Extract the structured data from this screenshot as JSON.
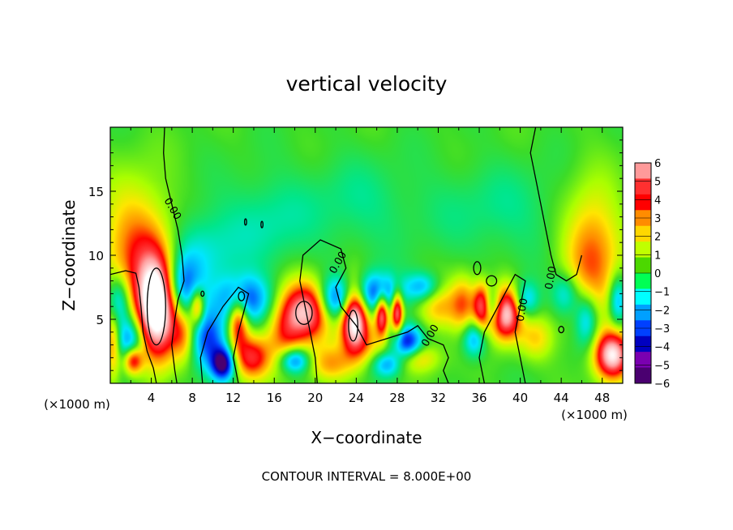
{
  "chart_data": {
    "type": "heatmap",
    "title": "vertical velocity",
    "xlabel": "X−coordinate",
    "ylabel": "Z−coordinate",
    "x_unit_left": "(×1000 m)",
    "x_unit_right": "(×1000 m)",
    "footer": "CONTOUR INTERVAL = 8.000E+00",
    "xlim": [
      0,
      50
    ],
    "ylim": [
      0,
      20
    ],
    "x_ticks": [
      4,
      8,
      12,
      16,
      20,
      24,
      28,
      32,
      36,
      40,
      44,
      48
    ],
    "x_tick_labels": [
      "4",
      "8",
      "12",
      "16",
      "20",
      "24",
      "28",
      "32",
      "36",
      "40",
      "44",
      "48"
    ],
    "y_ticks": [
      5,
      10,
      15
    ],
    "y_tick_labels": [
      "5",
      "10",
      "15"
    ],
    "contour_labels": [
      {
        "text": "0.00",
        "x": 5.8,
        "y": 13.5,
        "angle": 60
      },
      {
        "text": "0.00",
        "x": 22.5,
        "y": 9.3,
        "angle": -60
      },
      {
        "text": "0.00",
        "x": 31.5,
        "y": 3.6,
        "angle": -60
      },
      {
        "text": "0.00",
        "x": 40.5,
        "y": 5.7,
        "angle": -80
      },
      {
        "text": "0.00",
        "x": 43.3,
        "y": 8.2,
        "angle": -80
      }
    ],
    "colorbar": {
      "labels": [
        "6",
        "5",
        "4",
        "3",
        "2",
        "1",
        "0",
        "−1",
        "−2",
        "−3",
        "−4",
        "−5",
        "−6"
      ],
      "colors": [
        "#ff9a9a",
        "#ff3030",
        "#ff0000",
        "#ff8c00",
        "#ffd700",
        "#c0ff00",
        "#4cd800",
        "#00ff55",
        "#00ffff",
        "#00a0ff",
        "#0040ff",
        "#0000c0",
        "#7a00b0",
        "#4a0070"
      ]
    },
    "features": [
      {
        "x": 4.5,
        "y": 6.0,
        "sx": 1.4,
        "sy": 2.8,
        "value": 9
      },
      {
        "x": 2.5,
        "y": 10.5,
        "sx": 2.4,
        "sy": 3.6,
        "value": 3.3
      },
      {
        "x": 47.0,
        "y": 10.0,
        "sx": 2.0,
        "sy": 3.6,
        "value": 3.6
      },
      {
        "x": 49.0,
        "y": 2.2,
        "sx": 1.2,
        "sy": 1.3,
        "value": 7
      },
      {
        "x": 19.0,
        "y": 5.6,
        "sx": 1.8,
        "sy": 1.6,
        "value": 6.5
      },
      {
        "x": 23.8,
        "y": 5.2,
        "sx": 0.9,
        "sy": 1.8,
        "value": 8
      },
      {
        "x": 26.5,
        "y": 5.5,
        "sx": 0.45,
        "sy": 1.2,
        "value": 6
      },
      {
        "x": 28.0,
        "y": 5.6,
        "sx": 0.4,
        "sy": 1.2,
        "value": 6
      },
      {
        "x": 38.5,
        "y": 5.5,
        "sx": 1.1,
        "sy": 1.4,
        "value": 7.5
      },
      {
        "x": 36.3,
        "y": 6.0,
        "sx": 0.6,
        "sy": 1.2,
        "value": 6
      },
      {
        "x": 12.5,
        "y": 5.0,
        "sx": 0.7,
        "sy": 1.5,
        "value": 5
      },
      {
        "x": 13.8,
        "y": 2.0,
        "sx": 1.3,
        "sy": 1.2,
        "value": 4.5
      },
      {
        "x": 2.2,
        "y": 1.8,
        "sx": 0.7,
        "sy": 0.8,
        "value": 6
      },
      {
        "x": 32.0,
        "y": 6.0,
        "sx": 1.4,
        "sy": 1.3,
        "value": 2.5
      },
      {
        "x": 34.5,
        "y": 6.2,
        "sx": 0.9,
        "sy": 1.5,
        "value": 3
      },
      {
        "x": 30.0,
        "y": 2.0,
        "sx": 1.5,
        "sy": 0.8,
        "value": 2.4
      },
      {
        "x": 21.5,
        "y": 1.5,
        "sx": 1.5,
        "sy": 1.0,
        "value": 2.5
      },
      {
        "x": 25.0,
        "y": 3.0,
        "sx": 1.4,
        "sy": 1.2,
        "value": 2
      },
      {
        "x": 41.5,
        "y": 3.5,
        "sx": 1.2,
        "sy": 1.2,
        "value": 2
      },
      {
        "x": 8.5,
        "y": 6.0,
        "sx": 0.5,
        "sy": 1.0,
        "value": 4
      },
      {
        "x": 17.0,
        "y": 3.5,
        "sx": 1.2,
        "sy": 1.5,
        "value": 2.5
      },
      {
        "x": 0.3,
        "y": 3.0,
        "sx": 0.5,
        "sy": 1.8,
        "value": 3
      },
      {
        "x": 7.2,
        "y": 3.8,
        "sx": 0.8,
        "sy": 1.4,
        "value": 2.5
      },
      {
        "x": 11.0,
        "y": 1.5,
        "sx": 0.8,
        "sy": 0.9,
        "value": -6
      },
      {
        "x": 13.0,
        "y": 6.5,
        "sx": 1.8,
        "sy": 1.3,
        "value": -4.5
      },
      {
        "x": 9.5,
        "y": 3.5,
        "sx": 1.2,
        "sy": 1.6,
        "value": -4
      },
      {
        "x": 2.0,
        "y": 3.0,
        "sx": 1.0,
        "sy": 1.6,
        "value": -4.5
      },
      {
        "x": 0.8,
        "y": 6.5,
        "sx": 0.8,
        "sy": 1.4,
        "value": -3
      },
      {
        "x": 7.0,
        "y": 7.5,
        "sx": 1.2,
        "sy": 1.6,
        "value": -3.5
      },
      {
        "x": 8.5,
        "y": 10.0,
        "sx": 2.5,
        "sy": 2.2,
        "value": -1.8
      },
      {
        "x": 15.0,
        "y": 12.5,
        "sx": 3.0,
        "sy": 2.5,
        "value": -1.2
      },
      {
        "x": 24.0,
        "y": 14.0,
        "sx": 4.0,
        "sy": 2.5,
        "value": -0.9
      },
      {
        "x": 38.0,
        "y": 13.5,
        "sx": 5.0,
        "sy": 2.5,
        "value": -0.9
      },
      {
        "x": 22.0,
        "y": 6.5,
        "sx": 1.2,
        "sy": 1.2,
        "value": -4.5
      },
      {
        "x": 26.0,
        "y": 7.0,
        "sx": 1.6,
        "sy": 1.1,
        "value": -4.5
      },
      {
        "x": 29.0,
        "y": 3.2,
        "sx": 1.0,
        "sy": 0.9,
        "value": -5
      },
      {
        "x": 30.5,
        "y": 7.5,
        "sx": 1.2,
        "sy": 0.8,
        "value": -3
      },
      {
        "x": 35.5,
        "y": 3.5,
        "sx": 0.8,
        "sy": 1.0,
        "value": -3
      },
      {
        "x": 37.2,
        "y": 6.0,
        "sx": 0.8,
        "sy": 1.0,
        "value": -4
      },
      {
        "x": 40.5,
        "y": 6.5,
        "sx": 0.9,
        "sy": 1.0,
        "value": -2.8
      },
      {
        "x": 44.5,
        "y": 7.0,
        "sx": 1.0,
        "sy": 1.2,
        "value": -2.5
      },
      {
        "x": 46.5,
        "y": 5.0,
        "sx": 0.8,
        "sy": 1.5,
        "value": -3
      },
      {
        "x": 49.5,
        "y": 6.5,
        "sx": 0.6,
        "sy": 1.4,
        "value": -3
      },
      {
        "x": 18.0,
        "y": 1.8,
        "sx": 1.0,
        "sy": 0.7,
        "value": -4
      },
      {
        "x": 27.0,
        "y": 1.5,
        "sx": 1.0,
        "sy": 0.7,
        "value": -3
      }
    ],
    "contour_paths": [
      [
        [
          5.3,
          20
        ],
        [
          5.2,
          18
        ],
        [
          5.4,
          16
        ],
        [
          6.0,
          14
        ],
        [
          6.6,
          12
        ],
        [
          7.0,
          10
        ],
        [
          7.2,
          8
        ],
        [
          6.6,
          6.5
        ],
        [
          6.3,
          5
        ],
        [
          6.0,
          3
        ],
        [
          6.3,
          1
        ],
        [
          6.5,
          0
        ]
      ],
      [
        [
          0,
          8.5
        ],
        [
          1.5,
          8.8
        ],
        [
          2.5,
          8.6
        ],
        [
          2.8,
          7.5
        ],
        [
          3.0,
          6
        ],
        [
          3.2,
          4
        ],
        [
          3.6,
          2.5
        ],
        [
          4.2,
          1.2
        ],
        [
          4.5,
          0
        ]
      ],
      [
        [
          20.2,
          0
        ],
        [
          20.0,
          2
        ],
        [
          19.5,
          4
        ],
        [
          19.0,
          6
        ],
        [
          18.5,
          8
        ],
        [
          18.8,
          10
        ],
        [
          20.5,
          11.2
        ],
        [
          22.5,
          10.5
        ],
        [
          23.0,
          9.0
        ],
        [
          22.0,
          7.5
        ],
        [
          22.5,
          6.0
        ],
        [
          24.0,
          4.5
        ],
        [
          25.0,
          3.0
        ],
        [
          27.0,
          3.5
        ],
        [
          29.0,
          4.0
        ],
        [
          30.0,
          4.5
        ],
        [
          31.0,
          3.5
        ],
        [
          32.5,
          3.0
        ],
        [
          33.0,
          2.0
        ],
        [
          32.5,
          1.0
        ],
        [
          33.0,
          0
        ]
      ],
      [
        [
          41.5,
          20
        ],
        [
          41.0,
          18
        ],
        [
          41.5,
          16
        ],
        [
          42.0,
          14
        ],
        [
          42.5,
          12
        ],
        [
          43.0,
          10
        ],
        [
          43.5,
          8.5
        ],
        [
          44.5,
          8.0
        ],
        [
          45.5,
          8.5
        ],
        [
          46.0,
          10
        ]
      ],
      [
        [
          9.0,
          0
        ],
        [
          8.8,
          2
        ],
        [
          9.5,
          4
        ],
        [
          11.0,
          6
        ],
        [
          12.5,
          7.5
        ],
        [
          13.5,
          7.0
        ],
        [
          13.0,
          5.5
        ],
        [
          12.5,
          4.0
        ],
        [
          12.0,
          2.0
        ],
        [
          12.5,
          0
        ]
      ],
      [
        [
          36.5,
          0
        ],
        [
          36.0,
          2
        ],
        [
          36.5,
          4
        ],
        [
          37.5,
          5.5
        ],
        [
          38.5,
          7.0
        ],
        [
          39.5,
          8.5
        ],
        [
          40.5,
          8.0
        ],
        [
          40.0,
          6.0
        ],
        [
          39.5,
          4.0
        ],
        [
          40.0,
          2.0
        ],
        [
          40.5,
          0
        ]
      ]
    ],
    "closed_contours": [
      {
        "x": 4.5,
        "y": 6.0,
        "rx": 0.9,
        "ry": 3.0
      },
      {
        "x": 18.9,
        "y": 5.5,
        "rx": 0.8,
        "ry": 0.9
      },
      {
        "x": 23.7,
        "y": 4.5,
        "rx": 0.45,
        "ry": 1.2
      },
      {
        "x": 35.8,
        "y": 9.0,
        "rx": 0.35,
        "ry": 0.5
      },
      {
        "x": 44.0,
        "y": 4.2,
        "rx": 0.25,
        "ry": 0.25
      },
      {
        "x": 9.0,
        "y": 7.0,
        "rx": 0.15,
        "ry": 0.2
      },
      {
        "x": 12.8,
        "y": 6.8,
        "rx": 0.3,
        "ry": 0.35
      },
      {
        "x": 13.2,
        "y": 12.6,
        "rx": 0.1,
        "ry": 0.25
      },
      {
        "x": 14.8,
        "y": 12.4,
        "rx": 0.1,
        "ry": 0.25
      },
      {
        "x": 37.2,
        "y": 8.0,
        "rx": 0.5,
        "ry": 0.4
      }
    ]
  }
}
